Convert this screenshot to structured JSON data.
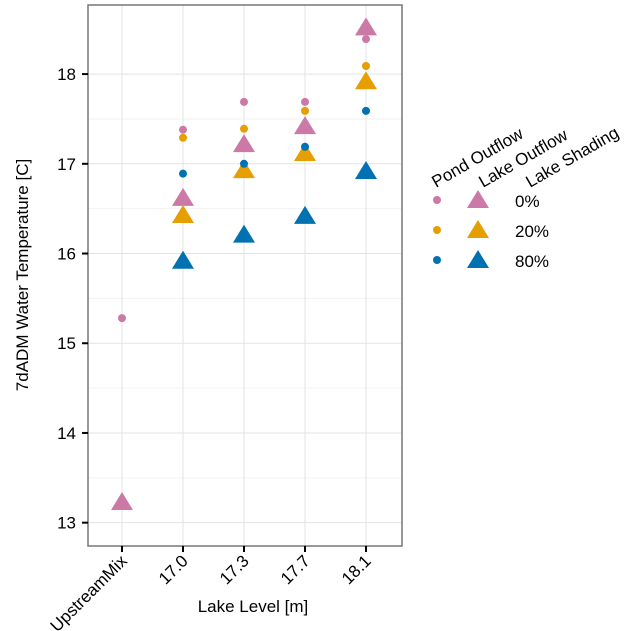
{
  "chart_data": {
    "type": "scatter",
    "x_label": "Lake Level [m]",
    "y_label": "7dADM Water Temperature [C]",
    "categories": [
      "UpstreamMix",
      "17.0",
      "17.3",
      "17.7",
      "18.1"
    ],
    "ylim": [
      12.74,
      18.77
    ],
    "yticks": [
      13,
      14,
      15,
      16,
      17,
      18
    ],
    "grid": true,
    "legend_titles": [
      "Pond Outflow",
      "Lake Outflow",
      "Lake Shading"
    ],
    "series": [
      {
        "name": "0%",
        "color": "#cc79a7",
        "pond_outflow": [
          15.28,
          17.38,
          17.69,
          17.69,
          18.39
        ],
        "lake_outflow": [
          13.23,
          16.62,
          17.22,
          17.42,
          18.52
        ]
      },
      {
        "name": "20%",
        "color": "#e69f00",
        "pond_outflow": [
          null,
          17.29,
          17.39,
          17.59,
          18.09
        ],
        "lake_outflow": [
          null,
          16.43,
          16.93,
          17.12,
          17.92
        ]
      },
      {
        "name": "80%",
        "color": "#0072b2",
        "pond_outflow": [
          null,
          16.89,
          17.0,
          17.19,
          17.59
        ],
        "lake_outflow": [
          null,
          15.92,
          16.21,
          16.42,
          16.92
        ]
      }
    ]
  }
}
